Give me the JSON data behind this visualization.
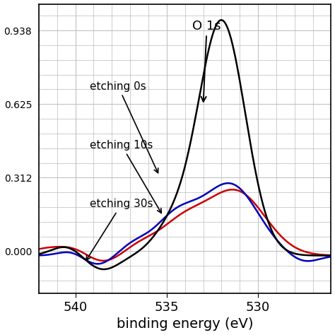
{
  "xlabel": "binding energy (eV)",
  "xlim": [
    542,
    526
  ],
  "xticks": [
    540,
    535,
    530
  ],
  "grid_color": "#bbbbbb",
  "background_color": "#ffffff",
  "line_colors": [
    "#000000",
    "#0000bb",
    "#cc0000"
  ],
  "line_labels": [
    "etching 0s",
    "etching 10s",
    "etching 30s"
  ],
  "xlabel_fontsize": 14,
  "tick_fontsize": 13,
  "annotation_o1s": "O 1s",
  "annotation_fontsize": 13
}
